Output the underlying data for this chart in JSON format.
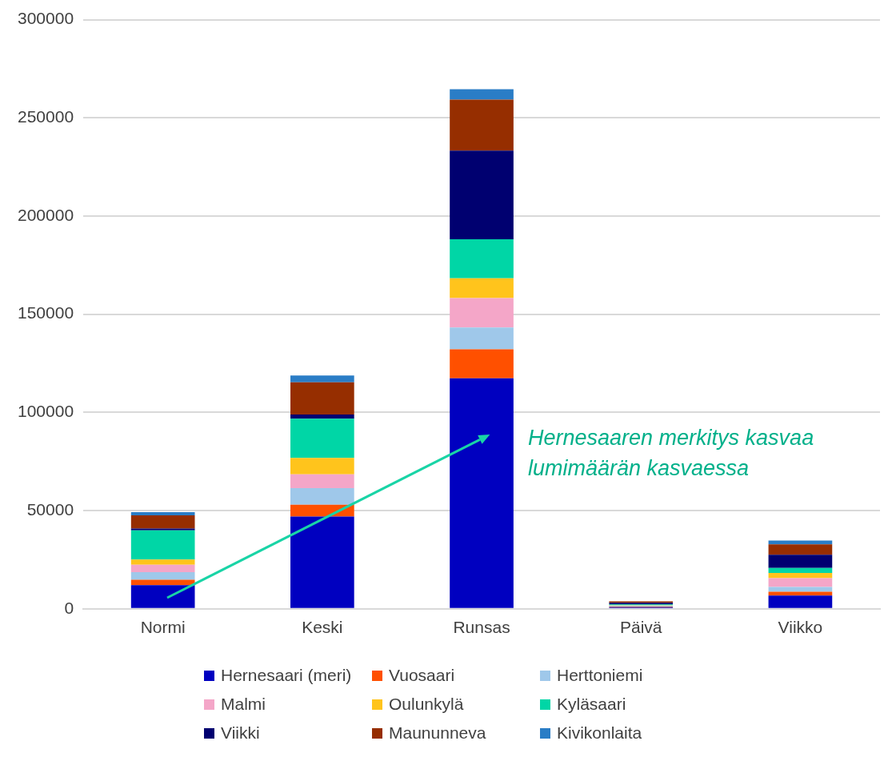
{
  "chart_data": {
    "type": "bar",
    "stacked": true,
    "categories": [
      "Normi",
      "Keski",
      "Runsas",
      "Päivä",
      "Viikko"
    ],
    "ylim": [
      0,
      300000
    ],
    "yticks": [
      0,
      50000,
      100000,
      150000,
      200000,
      250000,
      300000
    ],
    "grid": "y",
    "legend": "bottom",
    "annotations": [
      "Hernesaaren merkitys kasvaa lumimäärän kasvaessa"
    ],
    "series": [
      {
        "name": "Hernesaari (meri)",
        "color": "#0000c0",
        "values": [
          12000,
          47000,
          117400,
          800,
          6700
        ]
      },
      {
        "name": "Vuosaari",
        "color": "#ff5000",
        "values": [
          2800,
          6000,
          14800,
          300,
          2000
        ]
      },
      {
        "name": "Herttoniemi",
        "color": "#9fc8ea",
        "values": [
          3900,
          8500,
          11100,
          500,
          2400
        ]
      },
      {
        "name": "Malmi",
        "color": "#f4a6c8",
        "values": [
          3700,
          7000,
          14900,
          null,
          4500
        ]
      },
      {
        "name": "Oulunkylä",
        "color": "#ffc41c",
        "values": [
          2700,
          8300,
          10100,
          300,
          2700
        ]
      },
      {
        "name": "Kyläsaari",
        "color": "#00d6a6",
        "values": [
          14900,
          20000,
          19900,
          400,
          2500
        ]
      },
      {
        "name": "Viikki",
        "color": "#000070",
        "values": [
          900,
          2100,
          45100,
          800,
          6700
        ]
      },
      {
        "name": "Maununneva",
        "color": "#962e00",
        "values": [
          6700,
          16400,
          26000,
          700,
          5300
        ]
      },
      {
        "name": "Kivikonlaita",
        "color": "#2a7dc6",
        "values": [
          1600,
          3500,
          5300,
          null,
          2000
        ]
      }
    ]
  }
}
